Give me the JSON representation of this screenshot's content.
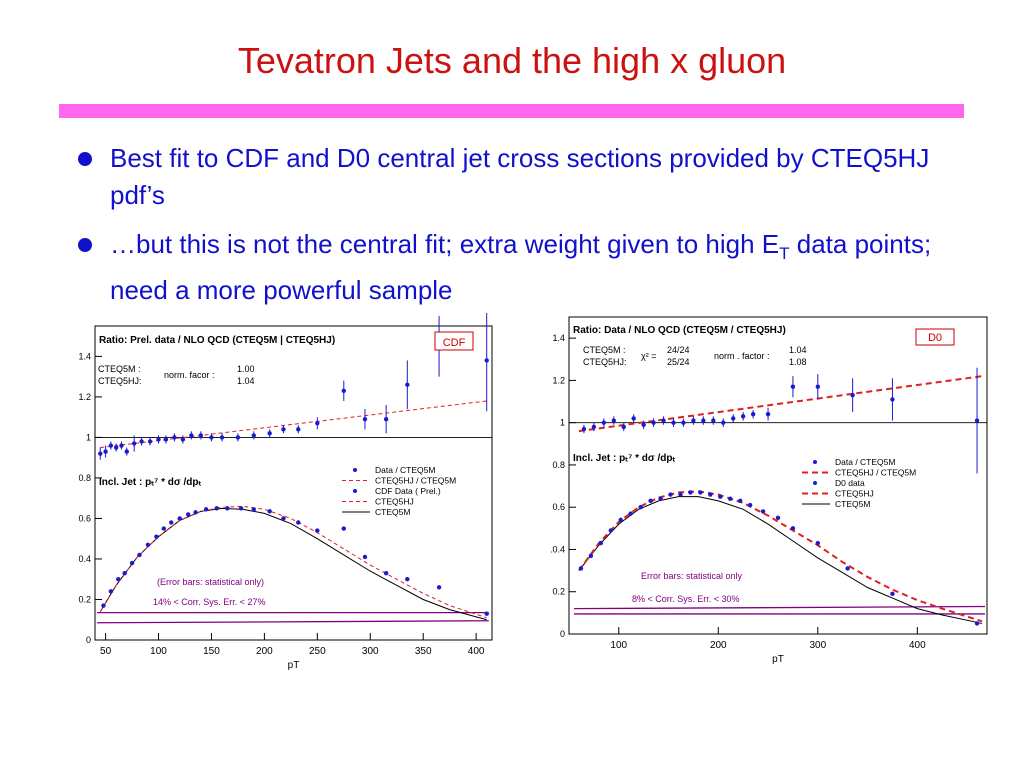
{
  "slide": {
    "title": "Tevatron Jets and the high x gluon",
    "bullets": [
      {
        "text": "Best fit to CDF and D0 central jet cross sections provided by CTEQ5HJ pdf’s"
      },
      {
        "text_pre": "…but this is not the central fit; extra weight given to high E",
        "text_sub": "T",
        "text_post": " data points; need a more powerful sample"
      }
    ]
  },
  "colors": {
    "title": "#cc1111",
    "rule": "#ff66ee",
    "bullet_text": "#1111cc",
    "data": "#1a1ad0",
    "dashed": "#e02020",
    "band": "#800080",
    "solid": "#000000",
    "badge": "#cc0000"
  },
  "chart_data": [
    {
      "type": "scatter",
      "title": "Ratio: Prel. data / NLO QCD (CTEQ5M | CTEQ5HJ)",
      "badge": "CDF",
      "xlabel": "pT",
      "xlim": [
        40,
        415
      ],
      "ylim": [
        0,
        1.55
      ],
      "xticks": [
        50,
        100,
        150,
        200,
        250,
        300,
        350,
        400
      ],
      "yticks": [
        0,
        0.2,
        0.4,
        0.6,
        0.8,
        1,
        1.2,
        1.4
      ],
      "norm": {
        "rows": [
          "CTEQ5M :",
          "CTEQ5HJ:"
        ],
        "label": "norm. facor :",
        "values": [
          "1.00",
          "1.04"
        ]
      },
      "incl_label": "Incl. Jet  : pₜ⁷ * dσ /dpₜ",
      "legend": [
        "Data / CTEQ5M",
        "CTEQ5HJ / CTEQ5M",
        "CDF Data ( Prel.)",
        "CTEQ5HJ",
        "CTEQ5M"
      ],
      "notes": [
        "(Error bars: statistical only)",
        "14% < Corr. Sys. Err. < 27%"
      ],
      "ratio_points": [
        {
          "x": 45,
          "y": 0.92,
          "e": 0.03
        },
        {
          "x": 50,
          "y": 0.93,
          "e": 0.03
        },
        {
          "x": 55,
          "y": 0.96,
          "e": 0.02
        },
        {
          "x": 60,
          "y": 0.95,
          "e": 0.02
        },
        {
          "x": 65,
          "y": 0.96,
          "e": 0.02
        },
        {
          "x": 70,
          "y": 0.93,
          "e": 0.02
        },
        {
          "x": 77,
          "y": 0.97,
          "e": 0.04
        },
        {
          "x": 84,
          "y": 0.98,
          "e": 0.02
        },
        {
          "x": 92,
          "y": 0.98,
          "e": 0.02
        },
        {
          "x": 100,
          "y": 0.99,
          "e": 0.02
        },
        {
          "x": 107,
          "y": 0.99,
          "e": 0.02
        },
        {
          "x": 115,
          "y": 1.0,
          "e": 0.02
        },
        {
          "x": 123,
          "y": 0.99,
          "e": 0.02
        },
        {
          "x": 131,
          "y": 1.01,
          "e": 0.02
        },
        {
          "x": 140,
          "y": 1.01,
          "e": 0.02
        },
        {
          "x": 150,
          "y": 1.0,
          "e": 0.02
        },
        {
          "x": 160,
          "y": 1.0,
          "e": 0.02
        },
        {
          "x": 175,
          "y": 1.0,
          "e": 0.02
        },
        {
          "x": 190,
          "y": 1.01,
          "e": 0.02
        },
        {
          "x": 205,
          "y": 1.02,
          "e": 0.02
        },
        {
          "x": 218,
          "y": 1.04,
          "e": 0.02
        },
        {
          "x": 232,
          "y": 1.04,
          "e": 0.02
        },
        {
          "x": 250,
          "y": 1.07,
          "e": 0.03
        },
        {
          "x": 275,
          "y": 1.23,
          "e": 0.05
        },
        {
          "x": 295,
          "y": 1.09,
          "e": 0.05
        },
        {
          "x": 315,
          "y": 1.09,
          "e": 0.07
        },
        {
          "x": 335,
          "y": 1.26,
          "e": 0.12
        },
        {
          "x": 365,
          "y": 1.45,
          "e": 0.15
        },
        {
          "x": 410,
          "y": 1.38,
          "e": 0.25
        }
      ],
      "ratio_line": {
        "x": [
          45,
          410
        ],
        "y": [
          0.95,
          1.18
        ]
      },
      "shape_points": [
        {
          "x": 48,
          "y": 0.17
        },
        {
          "x": 55,
          "y": 0.24
        },
        {
          "x": 62,
          "y": 0.3
        },
        {
          "x": 68,
          "y": 0.33
        },
        {
          "x": 75,
          "y": 0.38
        },
        {
          "x": 82,
          "y": 0.42
        },
        {
          "x": 90,
          "y": 0.47
        },
        {
          "x": 98,
          "y": 0.51
        },
        {
          "x": 105,
          "y": 0.55
        },
        {
          "x": 112,
          "y": 0.58
        },
        {
          "x": 120,
          "y": 0.6
        },
        {
          "x": 128,
          "y": 0.62
        },
        {
          "x": 135,
          "y": 0.63
        },
        {
          "x": 145,
          "y": 0.645
        },
        {
          "x": 155,
          "y": 0.65
        },
        {
          "x": 165,
          "y": 0.65
        },
        {
          "x": 178,
          "y": 0.65
        },
        {
          "x": 190,
          "y": 0.645
        },
        {
          "x": 205,
          "y": 0.635
        },
        {
          "x": 218,
          "y": 0.6
        },
        {
          "x": 232,
          "y": 0.58
        },
        {
          "x": 250,
          "y": 0.54
        },
        {
          "x": 275,
          "y": 0.55
        },
        {
          "x": 295,
          "y": 0.41
        },
        {
          "x": 315,
          "y": 0.33
        },
        {
          "x": 335,
          "y": 0.3
        },
        {
          "x": 365,
          "y": 0.26
        },
        {
          "x": 410,
          "y": 0.13
        }
      ],
      "curve_dashed": {
        "x": [
          45,
          60,
          80,
          100,
          120,
          140,
          160,
          180,
          200,
          225,
          250,
          275,
          300,
          325,
          350,
          375,
          410
        ],
        "y": [
          0.14,
          0.27,
          0.41,
          0.51,
          0.59,
          0.635,
          0.655,
          0.66,
          0.645,
          0.6,
          0.53,
          0.45,
          0.37,
          0.3,
          0.23,
          0.17,
          0.11
        ]
      },
      "curve_solid": {
        "x": [
          45,
          60,
          80,
          100,
          120,
          140,
          160,
          180,
          200,
          225,
          250,
          275,
          300,
          325,
          350,
          375,
          410
        ],
        "y": [
          0.14,
          0.27,
          0.41,
          0.51,
          0.59,
          0.635,
          0.65,
          0.645,
          0.625,
          0.575,
          0.5,
          0.42,
          0.34,
          0.27,
          0.2,
          0.15,
          0.1
        ]
      },
      "band_lines": [
        {
          "x": [
            42,
            412
          ],
          "y": [
            0.135,
            0.135
          ]
        },
        {
          "x": [
            42,
            412
          ],
          "y": [
            0.085,
            0.095
          ]
        }
      ]
    },
    {
      "type": "scatter",
      "title": "Ratio:  Data  / NLO QCD (CTEQ5M / CTEQ5HJ)",
      "badge": "D0",
      "xlabel": "pT",
      "xlim": [
        50,
        470
      ],
      "ylim": [
        0,
        1.5
      ],
      "xticks": [
        100,
        200,
        300,
        400
      ],
      "yticks": [
        0,
        0.2,
        0.4,
        0.6,
        0.8,
        1,
        1.2,
        1.4
      ],
      "ytick_labels": [
        "0",
        "0.2",
        ".0.4",
        "0.6",
        "0.8",
        "1",
        "1.2",
        "1.4"
      ],
      "chi": {
        "rows": [
          "CTEQ5M :",
          "CTEQ5HJ:"
        ],
        "label": "χ² =",
        "values": [
          "24/24",
          "25/24"
        ]
      },
      "norm": {
        "label": "norm . factor :",
        "values": [
          "1.04",
          "1.08"
        ]
      },
      "incl_label": "Incl. Jet  : pₜ⁷ * dσ /dpₜ",
      "legend": [
        "Data / CTEQ5M",
        "CTEQ5HJ / CTEQ5M",
        "D0 data",
        "CTEQ5HJ",
        "CTEQ5M"
      ],
      "notes": [
        "Error bars: statistical only",
        "8% < Corr. Sys. Err. < 30%"
      ],
      "ratio_points": [
        {
          "x": 65,
          "y": 0.97,
          "e": 0.02
        },
        {
          "x": 75,
          "y": 0.98,
          "e": 0.02
        },
        {
          "x": 85,
          "y": 1.0,
          "e": 0.02
        },
        {
          "x": 95,
          "y": 1.01,
          "e": 0.02
        },
        {
          "x": 105,
          "y": 0.98,
          "e": 0.02
        },
        {
          "x": 115,
          "y": 1.02,
          "e": 0.02
        },
        {
          "x": 125,
          "y": 0.99,
          "e": 0.02
        },
        {
          "x": 135,
          "y": 1.0,
          "e": 0.02
        },
        {
          "x": 145,
          "y": 1.01,
          "e": 0.02
        },
        {
          "x": 155,
          "y": 1.0,
          "e": 0.02
        },
        {
          "x": 165,
          "y": 1.0,
          "e": 0.02
        },
        {
          "x": 175,
          "y": 1.01,
          "e": 0.02
        },
        {
          "x": 185,
          "y": 1.01,
          "e": 0.02
        },
        {
          "x": 195,
          "y": 1.01,
          "e": 0.02
        },
        {
          "x": 205,
          "y": 1.0,
          "e": 0.02
        },
        {
          "x": 215,
          "y": 1.02,
          "e": 0.02
        },
        {
          "x": 225,
          "y": 1.03,
          "e": 0.02
        },
        {
          "x": 235,
          "y": 1.04,
          "e": 0.02
        },
        {
          "x": 250,
          "y": 1.04,
          "e": 0.03
        },
        {
          "x": 275,
          "y": 1.17,
          "e": 0.05
        },
        {
          "x": 300,
          "y": 1.17,
          "e": 0.06
        },
        {
          "x": 335,
          "y": 1.13,
          "e": 0.08
        },
        {
          "x": 375,
          "y": 1.11,
          "e": 0.1
        },
        {
          "x": 460,
          "y": 1.01,
          "e": 0.25
        }
      ],
      "ratio_line": {
        "x": [
          60,
          465
        ],
        "y": [
          0.96,
          1.22
        ]
      },
      "shape_points": [
        {
          "x": 62,
          "y": 0.31
        },
        {
          "x": 72,
          "y": 0.37
        },
        {
          "x": 82,
          "y": 0.43
        },
        {
          "x": 92,
          "y": 0.49
        },
        {
          "x": 102,
          "y": 0.54
        },
        {
          "x": 112,
          "y": 0.57
        },
        {
          "x": 122,
          "y": 0.6
        },
        {
          "x": 132,
          "y": 0.63
        },
        {
          "x": 142,
          "y": 0.64
        },
        {
          "x": 152,
          "y": 0.66
        },
        {
          "x": 162,
          "y": 0.66
        },
        {
          "x": 172,
          "y": 0.67
        },
        {
          "x": 182,
          "y": 0.67
        },
        {
          "x": 192,
          "y": 0.66
        },
        {
          "x": 202,
          "y": 0.65
        },
        {
          "x": 212,
          "y": 0.64
        },
        {
          "x": 222,
          "y": 0.63
        },
        {
          "x": 232,
          "y": 0.61
        },
        {
          "x": 245,
          "y": 0.58
        },
        {
          "x": 260,
          "y": 0.55
        },
        {
          "x": 275,
          "y": 0.5
        },
        {
          "x": 300,
          "y": 0.43
        },
        {
          "x": 330,
          "y": 0.31
        },
        {
          "x": 375,
          "y": 0.19
        },
        {
          "x": 460,
          "y": 0.05
        }
      ],
      "curve_dashed": {
        "x": [
          60,
          80,
          100,
          120,
          140,
          160,
          180,
          200,
          225,
          250,
          275,
          300,
          325,
          350,
          375,
          400,
          425,
          465
        ],
        "y": [
          0.3,
          0.43,
          0.53,
          0.6,
          0.645,
          0.67,
          0.675,
          0.66,
          0.62,
          0.56,
          0.49,
          0.42,
          0.34,
          0.27,
          0.21,
          0.16,
          0.12,
          0.06
        ]
      },
      "curve_solid": {
        "x": [
          60,
          80,
          100,
          120,
          140,
          160,
          180,
          200,
          225,
          250,
          275,
          300,
          325,
          350,
          375,
          400,
          425,
          465
        ],
        "y": [
          0.3,
          0.42,
          0.52,
          0.59,
          0.63,
          0.65,
          0.65,
          0.63,
          0.59,
          0.52,
          0.44,
          0.36,
          0.29,
          0.22,
          0.17,
          0.12,
          0.09,
          0.05
        ]
      },
      "band_lines": [
        {
          "x": [
            55,
            468
          ],
          "y": [
            0.12,
            0.13
          ]
        },
        {
          "x": [
            55,
            468
          ],
          "y": [
            0.095,
            0.095
          ]
        }
      ]
    }
  ]
}
